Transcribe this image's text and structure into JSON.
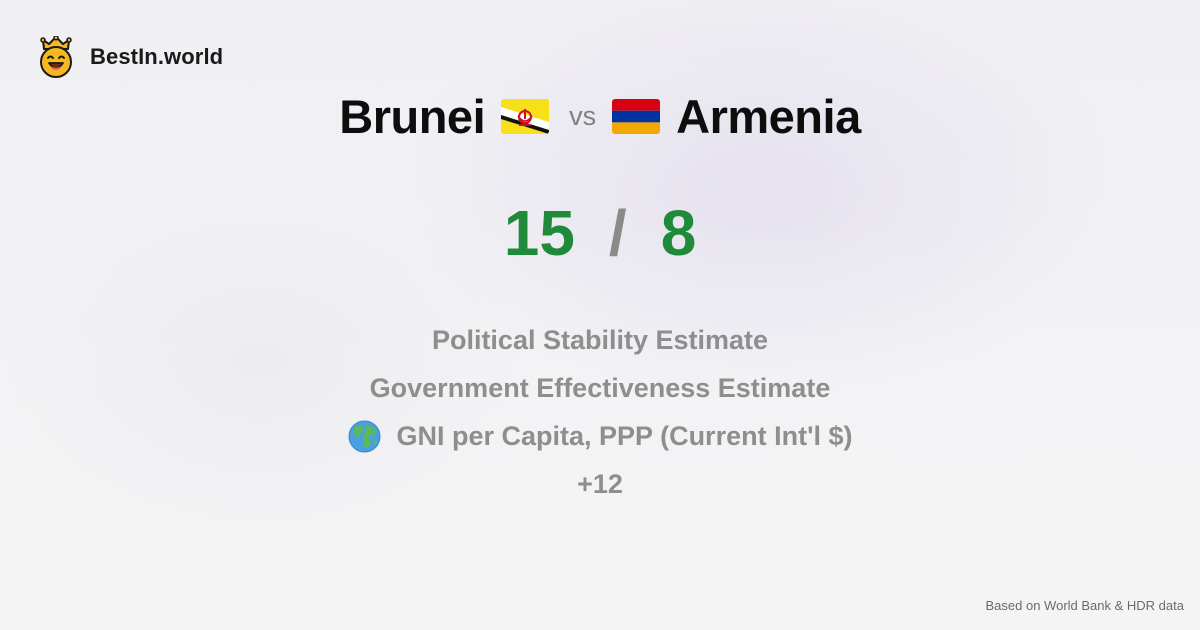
{
  "brand": {
    "name": "BestIn.world",
    "logo_icon": "smiling-crown-face-icon"
  },
  "comparison": {
    "country_a": "Brunei",
    "country_b": "Armenia",
    "vs_label": "vs",
    "flag_a_icon": "brunei-flag-icon",
    "flag_b_icon": "armenia-flag-icon"
  },
  "score": {
    "a": "15",
    "separator": "/",
    "b": "8",
    "color": "#1f8a3a"
  },
  "metrics": [
    {
      "label": "Political Stability Estimate"
    },
    {
      "label": "Government Effectiveness Estimate"
    },
    {
      "label": "GNI per Capita, PPP (Current Int'l $)",
      "icon": "globe-icon"
    }
  ],
  "more_label": "+12",
  "footer": {
    "source": "Based on World Bank & HDR data"
  }
}
